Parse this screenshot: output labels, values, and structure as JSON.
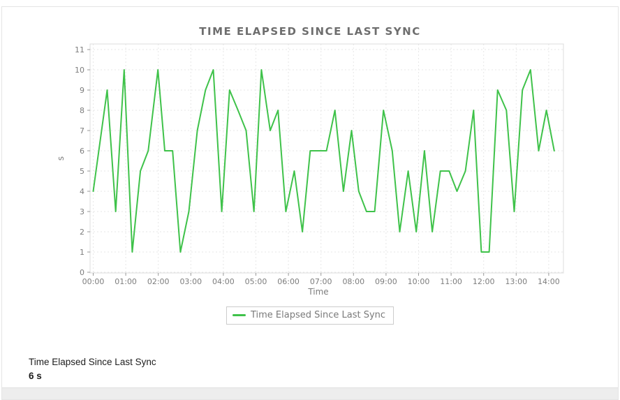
{
  "chart": {
    "title": "TIME ELAPSED SINCE LAST SYNC",
    "x_axis_label": "Time",
    "y_axis_label": "s",
    "legend_label": "Time Elapsed Since Last Sync",
    "colors": {
      "line": "#3fc24a",
      "grid": "#e7e7e7",
      "plot_border": "#dcdcdc",
      "tick": "#9a9a9a",
      "tick_text": "#7d7d7d",
      "title_text": "#6e6e6e"
    }
  },
  "summary": {
    "label": "Time Elapsed Since Last Sync",
    "value": "6 s"
  },
  "chart_data": {
    "type": "line",
    "title": "TIME ELAPSED SINCE LAST SYNC",
    "xlabel": "Time",
    "ylabel": "s",
    "ylim": [
      0,
      11
    ],
    "xlim_hours": [
      -0.1,
      14.45
    ],
    "grid": true,
    "legend_position": "bottom",
    "legend": [
      "Time Elapsed Since Last Sync"
    ],
    "x_ticks": [
      "00:00",
      "01:00",
      "02:00",
      "03:00",
      "04:00",
      "05:00",
      "06:00",
      "07:00",
      "08:00",
      "09:00",
      "10:00",
      "11:00",
      "12:00",
      "13:00",
      "14:00"
    ],
    "y_ticks": [
      0,
      1,
      2,
      3,
      4,
      5,
      6,
      7,
      8,
      9,
      10,
      11
    ],
    "series": [
      {
        "name": "Time Elapsed Since Last Sync",
        "color": "#3fc24a",
        "points_t_hours_value_seconds": [
          [
            0.0,
            4
          ],
          [
            0.43,
            9
          ],
          [
            0.69,
            3
          ],
          [
            0.95,
            10
          ],
          [
            1.2,
            1
          ],
          [
            1.45,
            5
          ],
          [
            1.69,
            6
          ],
          [
            1.99,
            10
          ],
          [
            2.2,
            6
          ],
          [
            2.44,
            6
          ],
          [
            2.68,
            1
          ],
          [
            2.94,
            3
          ],
          [
            3.2,
            7
          ],
          [
            3.45,
            9
          ],
          [
            3.69,
            10
          ],
          [
            3.95,
            3
          ],
          [
            4.19,
            9
          ],
          [
            4.45,
            8
          ],
          [
            4.7,
            7
          ],
          [
            4.94,
            3
          ],
          [
            5.17,
            10
          ],
          [
            5.44,
            7
          ],
          [
            5.68,
            8
          ],
          [
            5.92,
            3
          ],
          [
            6.18,
            5
          ],
          [
            6.43,
            2
          ],
          [
            6.67,
            6
          ],
          [
            6.92,
            6
          ],
          [
            7.17,
            6
          ],
          [
            7.43,
            8
          ],
          [
            7.69,
            4
          ],
          [
            7.94,
            7
          ],
          [
            8.16,
            4
          ],
          [
            8.4,
            3
          ],
          [
            8.65,
            3
          ],
          [
            8.92,
            8
          ],
          [
            9.19,
            6
          ],
          [
            9.42,
            2
          ],
          [
            9.68,
            5
          ],
          [
            9.93,
            2
          ],
          [
            10.18,
            6
          ],
          [
            10.42,
            2
          ],
          [
            10.67,
            5
          ],
          [
            10.94,
            5
          ],
          [
            11.18,
            4
          ],
          [
            11.44,
            5
          ],
          [
            11.69,
            8
          ],
          [
            11.93,
            1
          ],
          [
            12.17,
            1
          ],
          [
            12.43,
            9
          ],
          [
            12.7,
            8
          ],
          [
            12.94,
            3
          ],
          [
            13.19,
            9
          ],
          [
            13.44,
            10
          ],
          [
            13.69,
            6
          ],
          [
            13.93,
            8
          ],
          [
            14.17,
            6
          ]
        ]
      }
    ]
  }
}
